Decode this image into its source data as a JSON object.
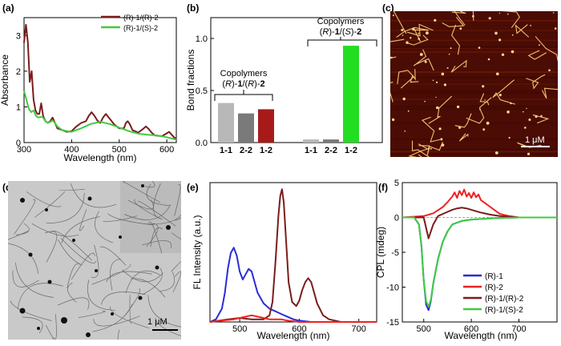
{
  "panel_labels": {
    "a": "(a)",
    "b": "(b)",
    "c": "(c)",
    "d": "(d)",
    "e": "(e)",
    "f": "(f)"
  },
  "colors": {
    "darkred": "#7b1c1c",
    "green": "#3fcc3f",
    "blue": "#2b2bd9",
    "red": "#ee2222",
    "grey1": "#b8b8b8",
    "grey2": "#7a7a7a",
    "barred": "#a81a1a",
    "bargreen": "#22dd22"
  },
  "scale_bars": {
    "c": "1 μM",
    "d": "1 μM"
  },
  "chart_data": [
    {
      "id": "a",
      "type": "line",
      "title": "",
      "xlabel": "Wavelength (nm)",
      "ylabel": "Absorbance",
      "xlim": [
        300,
        620
      ],
      "ylim": [
        0,
        3.5
      ],
      "xticks": [
        300,
        400,
        500,
        600
      ],
      "yticks": [
        0,
        1,
        2,
        3
      ],
      "legend": [
        "(R)-1/(R)-2",
        "(R)-1/(S)-2"
      ],
      "series": [
        {
          "name": "(R)-1/(R)-2",
          "color": "#7b1c1c",
          "x": [
            300,
            304,
            308,
            312,
            316,
            320,
            324,
            328,
            332,
            336,
            340,
            345,
            350,
            355,
            360,
            365,
            370,
            380,
            390,
            400,
            410,
            420,
            430,
            436,
            442,
            448,
            454,
            460,
            466,
            472,
            478,
            484,
            490,
            500,
            510,
            514,
            518,
            522,
            528,
            540,
            550,
            556,
            562,
            568,
            575,
            590,
            605,
            615,
            620
          ],
          "y": [
            2.8,
            3.3,
            2.8,
            1.7,
            2.0,
            1.2,
            0.9,
            0.8,
            0.8,
            1.1,
            0.75,
            0.6,
            0.55,
            0.6,
            0.7,
            0.55,
            0.4,
            0.35,
            0.3,
            0.32,
            0.45,
            0.55,
            0.6,
            0.75,
            0.85,
            0.75,
            0.62,
            0.55,
            0.7,
            0.8,
            0.7,
            0.6,
            0.5,
            0.4,
            0.4,
            0.55,
            0.6,
            0.52,
            0.35,
            0.28,
            0.38,
            0.45,
            0.38,
            0.28,
            0.2,
            0.18,
            0.3,
            0.15,
            0.1
          ]
        },
        {
          "name": "(R)-1/(S)-2",
          "color": "#3fcc3f",
          "x": [
            300,
            305,
            310,
            315,
            320,
            325,
            330,
            335,
            340,
            345,
            350,
            355,
            360,
            365,
            370,
            380,
            390,
            400,
            420,
            440,
            460,
            480,
            500,
            520,
            540,
            560,
            580,
            600,
            620
          ],
          "y": [
            1.45,
            1.2,
            0.95,
            0.85,
            0.9,
            0.75,
            0.7,
            0.72,
            0.7,
            0.6,
            0.55,
            0.58,
            0.62,
            0.55,
            0.45,
            0.35,
            0.32,
            0.3,
            0.4,
            0.52,
            0.58,
            0.52,
            0.42,
            0.32,
            0.25,
            0.22,
            0.2,
            0.15,
            0.08
          ]
        }
      ]
    },
    {
      "id": "b",
      "type": "bar",
      "xlabel": "",
      "ylabel": "Bond fractions",
      "ylim": [
        0,
        1.2
      ],
      "yticks": [
        0.0,
        0.5,
        1.0
      ],
      "categories": [
        "1-1",
        "2-2",
        "1-2",
        "1-1",
        "2-2",
        "1-2"
      ],
      "values": [
        0.38,
        0.28,
        0.32,
        0.03,
        0.03,
        0.93
      ],
      "group_labels": [
        {
          "line1": "Copolymers",
          "line2_parts": [
            "(",
            "R",
            ")-",
            "1",
            "/(",
            "R",
            ")-",
            "2"
          ]
        },
        {
          "line1": "Copolymers",
          "line2_parts": [
            "(",
            "R",
            ")-",
            "1",
            "/(",
            "S",
            ")-",
            "2"
          ]
        }
      ]
    },
    {
      "id": "e",
      "type": "line",
      "xlabel": "Wavelength (nm)",
      "ylabel": "FL Intensity (a.u.)",
      "xlim": [
        450,
        730
      ],
      "ylim": [
        0,
        1.05
      ],
      "xticks": [
        500,
        600,
        700
      ],
      "series": [
        {
          "name": "blue",
          "color": "#2b2bd9",
          "x": [
            450,
            460,
            470,
            475,
            480,
            485,
            490,
            495,
            500,
            505,
            510,
            515,
            520,
            525,
            530,
            540,
            550,
            560,
            570,
            580,
            590,
            600,
            620,
            650,
            700,
            730
          ],
          "y": [
            0.0,
            0.02,
            0.1,
            0.22,
            0.4,
            0.52,
            0.56,
            0.5,
            0.38,
            0.32,
            0.36,
            0.4,
            0.38,
            0.3,
            0.22,
            0.14,
            0.1,
            0.08,
            0.06,
            0.04,
            0.02,
            0.01,
            0.0,
            0.0,
            0.0,
            0.0
          ]
        },
        {
          "name": "darkred",
          "color": "#7b1c1c",
          "x": [
            450,
            480,
            500,
            520,
            540,
            550,
            555,
            560,
            565,
            568,
            571,
            574,
            578,
            582,
            588,
            595,
            600,
            605,
            610,
            615,
            620,
            625,
            630,
            640,
            650,
            670,
            700,
            730
          ],
          "y": [
            0.0,
            0.02,
            0.03,
            0.02,
            0.02,
            0.05,
            0.15,
            0.45,
            0.8,
            0.95,
            1.0,
            0.9,
            0.6,
            0.3,
            0.15,
            0.12,
            0.16,
            0.24,
            0.3,
            0.33,
            0.3,
            0.22,
            0.14,
            0.05,
            0.02,
            0.0,
            0.0,
            0.0
          ]
        },
        {
          "name": "red",
          "color": "#ee2222",
          "x": [
            450,
            470,
            490,
            500,
            510,
            520,
            530,
            540,
            550,
            560,
            570,
            580,
            600,
            650,
            730
          ],
          "y": [
            0.0,
            0.01,
            0.02,
            0.03,
            0.04,
            0.05,
            0.04,
            0.03,
            0.02,
            0.02,
            0.02,
            0.01,
            0.0,
            0.0,
            0.0
          ]
        }
      ]
    },
    {
      "id": "f",
      "type": "line",
      "xlabel": "Wavelength (nm)",
      "ylabel": "CPL (mdeg)",
      "xlim": [
        455,
        780
      ],
      "ylim": [
        -15,
        5
      ],
      "xticks": [
        500,
        600,
        700
      ],
      "yticks": [
        5,
        0,
        -5,
        -10,
        -15
      ],
      "legend": [
        "(R)-1",
        "(R)-2",
        "(R)-1/(R)-2",
        "(R)-1/(S)-2"
      ],
      "series": [
        {
          "name": "(R)-1",
          "color": "#2b2bd9",
          "x": [
            455,
            480,
            490,
            495,
            500,
            505,
            510,
            515,
            520,
            530,
            540,
            550,
            560,
            580,
            600,
            650,
            700,
            780
          ],
          "y": [
            0,
            0,
            -1,
            -4,
            -9,
            -12.5,
            -13.3,
            -12,
            -9.5,
            -6,
            -3.5,
            -2,
            -1,
            -0.5,
            -0.3,
            -0.1,
            0,
            0
          ]
        },
        {
          "name": "(R)-2",
          "color": "#ee2222",
          "x": [
            455,
            500,
            520,
            540,
            550,
            560,
            565,
            570,
            575,
            580,
            585,
            590,
            595,
            600,
            605,
            610,
            615,
            620,
            630,
            640,
            650,
            660,
            680,
            700,
            780
          ],
          "y": [
            0,
            0.2,
            0.6,
            1.5,
            2.2,
            3.0,
            3.6,
            2.8,
            3.8,
            3.2,
            4.0,
            3.0,
            3.5,
            2.8,
            3.6,
            2.9,
            3.3,
            2.5,
            2.0,
            1.5,
            1.0,
            0.5,
            0.2,
            0,
            0
          ]
        },
        {
          "name": "(R)-1/(R)-2",
          "color": "#7b1c1c",
          "x": [
            455,
            500,
            510,
            520,
            530,
            540,
            550,
            560,
            570,
            580,
            590,
            600,
            620,
            640,
            660,
            680,
            700,
            780
          ],
          "y": [
            0,
            0,
            -3,
            -1,
            0.2,
            0.5,
            0.8,
            1.1,
            1.3,
            1.4,
            1.3,
            1.1,
            0.7,
            0.4,
            0.2,
            0.1,
            0,
            0
          ]
        },
        {
          "name": "(R)-1/(S)-2",
          "color": "#3fcc3f",
          "x": [
            455,
            480,
            490,
            495,
            500,
            505,
            510,
            515,
            520,
            530,
            540,
            550,
            560,
            580,
            600,
            650,
            700,
            780
          ],
          "y": [
            0,
            0,
            -1,
            -4,
            -9,
            -12,
            -12.8,
            -11.8,
            -9.5,
            -6,
            -3.5,
            -2,
            -1,
            -0.5,
            -0.3,
            -0.1,
            0,
            0
          ]
        }
      ]
    }
  ]
}
